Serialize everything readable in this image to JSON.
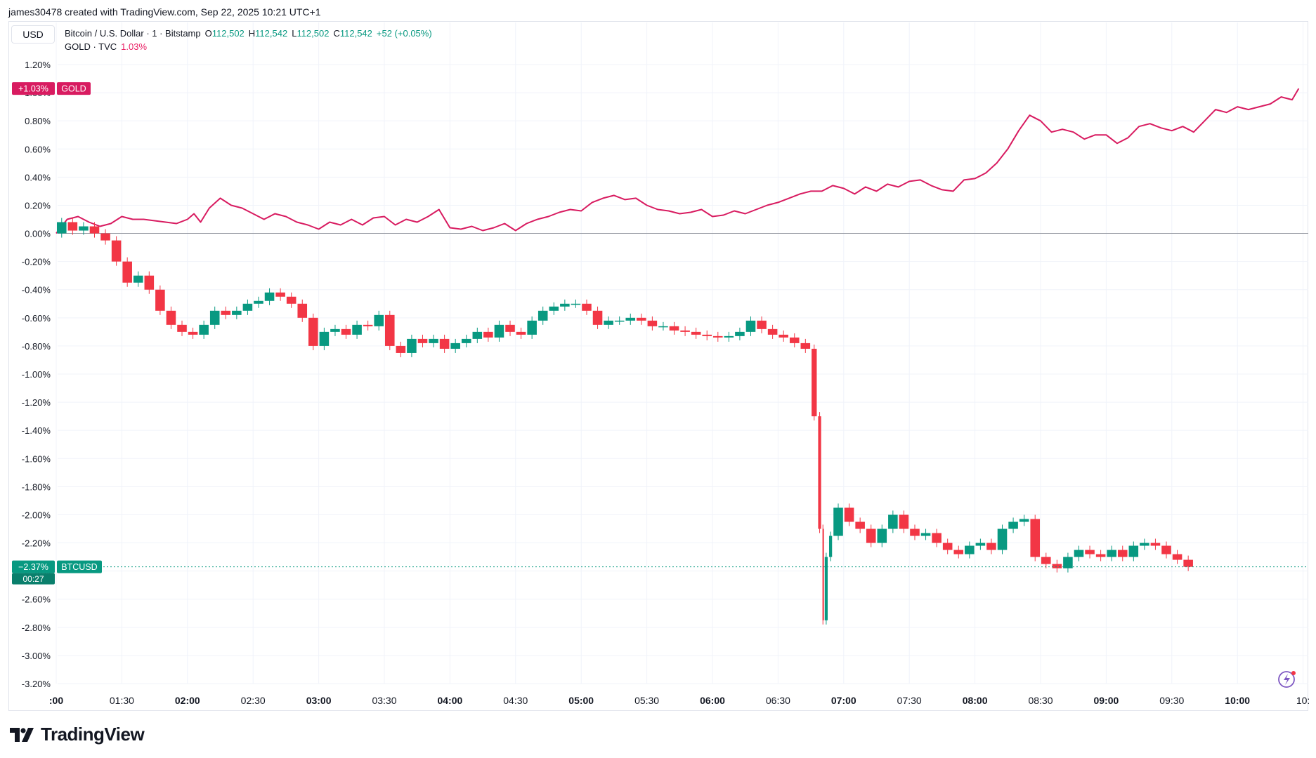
{
  "credit": "james30478 created with TradingView.com, Sep 22, 2025 10:21 UTC+1",
  "currency": "USD",
  "legend": {
    "symbol": "Bitcoin / U.S. Dollar · 1 · Bitstamp",
    "o_label": "O",
    "o_value": "112,502",
    "h_label": "H",
    "h_value": "112,542",
    "l_label": "L",
    "l_value": "112,502",
    "c_label": "C",
    "c_value": "112,542",
    "change": "+52 (+0.05%)",
    "gold_symbol": "GOLD · TVC",
    "gold_value": "1.03%"
  },
  "badges": {
    "gold_value": "+1.03%",
    "gold_name": "GOLD",
    "btc_value": "−2.37%",
    "btc_name": "BTCUSD",
    "btc_countdown": "00:27"
  },
  "brand": "TradingView",
  "colors": {
    "gold": "#d81b60",
    "up": "#089981",
    "down": "#f23645",
    "grid": "#f0f3fa",
    "text": "#131722"
  },
  "chart_data": {
    "type": "line",
    "y_scale": "percent",
    "ylim": [
      -3.2,
      1.2
    ],
    "y_ticks": [
      "1.20%",
      "1.00%",
      "0.80%",
      "0.60%",
      "0.40%",
      "0.20%",
      "0.00%",
      "-0.20%",
      "-0.40%",
      "-0.60%",
      "-0.80%",
      "-1.00%",
      "-1.20%",
      "-1.40%",
      "-1.60%",
      "-1.80%",
      "-2.00%",
      "-2.20%",
      "-2.40%",
      "-2.60%",
      "-2.80%",
      "-3.00%",
      "-3.20%"
    ],
    "x_ticks": [
      {
        "label": ":00",
        "bold": true
      },
      {
        "label": "01:30",
        "bold": false
      },
      {
        "label": "02:00",
        "bold": true
      },
      {
        "label": "02:30",
        "bold": false
      },
      {
        "label": "03:00",
        "bold": true
      },
      {
        "label": "03:30",
        "bold": false
      },
      {
        "label": "04:00",
        "bold": true
      },
      {
        "label": "04:30",
        "bold": false
      },
      {
        "label": "05:00",
        "bold": true
      },
      {
        "label": "05:30",
        "bold": false
      },
      {
        "label": "06:00",
        "bold": true
      },
      {
        "label": "06:30",
        "bold": false
      },
      {
        "label": "07:00",
        "bold": true
      },
      {
        "label": "07:30",
        "bold": false
      },
      {
        "label": "08:00",
        "bold": true
      },
      {
        "label": "08:30",
        "bold": false
      },
      {
        "label": "09:00",
        "bold": true
      },
      {
        "label": "09:30",
        "bold": false
      },
      {
        "label": "10:00",
        "bold": true
      },
      {
        "label": "10:",
        "bold": false
      }
    ],
    "x_range": [
      "01:00",
      "10:30"
    ],
    "series": [
      {
        "name": "GOLD",
        "style": "line",
        "points": [
          [
            "01:00",
            0.0
          ],
          [
            "01:05",
            0.1
          ],
          [
            "01:10",
            0.12
          ],
          [
            "01:15",
            0.08
          ],
          [
            "01:20",
            0.05
          ],
          [
            "01:25",
            0.07
          ],
          [
            "01:30",
            0.12
          ],
          [
            "01:35",
            0.1
          ],
          [
            "01:40",
            0.1
          ],
          [
            "01:45",
            0.09
          ],
          [
            "01:50",
            0.08
          ],
          [
            "01:55",
            0.07
          ],
          [
            "02:00",
            0.1
          ],
          [
            "02:03",
            0.14
          ],
          [
            "02:06",
            0.08
          ],
          [
            "02:10",
            0.18
          ],
          [
            "02:15",
            0.25
          ],
          [
            "02:20",
            0.2
          ],
          [
            "02:25",
            0.18
          ],
          [
            "02:30",
            0.14
          ],
          [
            "02:35",
            0.1
          ],
          [
            "02:40",
            0.14
          ],
          [
            "02:45",
            0.12
          ],
          [
            "02:50",
            0.08
          ],
          [
            "02:55",
            0.06
          ],
          [
            "03:00",
            0.03
          ],
          [
            "03:05",
            0.08
          ],
          [
            "03:10",
            0.06
          ],
          [
            "03:15",
            0.1
          ],
          [
            "03:20",
            0.06
          ],
          [
            "03:25",
            0.11
          ],
          [
            "03:30",
            0.12
          ],
          [
            "03:35",
            0.06
          ],
          [
            "03:40",
            0.1
          ],
          [
            "03:45",
            0.08
          ],
          [
            "03:50",
            0.12
          ],
          [
            "03:55",
            0.17
          ],
          [
            "04:00",
            0.04
          ],
          [
            "04:05",
            0.03
          ],
          [
            "04:10",
            0.05
          ],
          [
            "04:15",
            0.02
          ],
          [
            "04:20",
            0.04
          ],
          [
            "04:25",
            0.07
          ],
          [
            "04:30",
            0.02
          ],
          [
            "04:35",
            0.07
          ],
          [
            "04:40",
            0.1
          ],
          [
            "04:45",
            0.12
          ],
          [
            "04:50",
            0.15
          ],
          [
            "04:55",
            0.17
          ],
          [
            "05:00",
            0.16
          ],
          [
            "05:05",
            0.22
          ],
          [
            "05:10",
            0.25
          ],
          [
            "05:15",
            0.27
          ],
          [
            "05:20",
            0.24
          ],
          [
            "05:25",
            0.25
          ],
          [
            "05:30",
            0.2
          ],
          [
            "05:35",
            0.17
          ],
          [
            "05:40",
            0.16
          ],
          [
            "05:45",
            0.14
          ],
          [
            "05:50",
            0.15
          ],
          [
            "05:55",
            0.17
          ],
          [
            "06:00",
            0.12
          ],
          [
            "06:05",
            0.13
          ],
          [
            "06:10",
            0.16
          ],
          [
            "06:15",
            0.14
          ],
          [
            "06:20",
            0.17
          ],
          [
            "06:25",
            0.2
          ],
          [
            "06:30",
            0.22
          ],
          [
            "06:35",
            0.25
          ],
          [
            "06:40",
            0.28
          ],
          [
            "06:45",
            0.3
          ],
          [
            "06:50",
            0.3
          ],
          [
            "06:55",
            0.34
          ],
          [
            "07:00",
            0.32
          ],
          [
            "07:05",
            0.28
          ],
          [
            "07:10",
            0.33
          ],
          [
            "07:15",
            0.3
          ],
          [
            "07:20",
            0.35
          ],
          [
            "07:25",
            0.33
          ],
          [
            "07:30",
            0.37
          ],
          [
            "07:35",
            0.38
          ],
          [
            "07:40",
            0.34
          ],
          [
            "07:45",
            0.31
          ],
          [
            "07:50",
            0.3
          ],
          [
            "07:55",
            0.38
          ],
          [
            "08:00",
            0.39
          ],
          [
            "08:05",
            0.43
          ],
          [
            "08:10",
            0.5
          ],
          [
            "08:15",
            0.6
          ],
          [
            "08:20",
            0.73
          ],
          [
            "08:25",
            0.84
          ],
          [
            "08:30",
            0.8
          ],
          [
            "08:35",
            0.72
          ],
          [
            "08:40",
            0.74
          ],
          [
            "08:45",
            0.72
          ],
          [
            "08:50",
            0.67
          ],
          [
            "08:55",
            0.7
          ],
          [
            "09:00",
            0.7
          ],
          [
            "09:05",
            0.64
          ],
          [
            "09:10",
            0.68
          ],
          [
            "09:15",
            0.76
          ],
          [
            "09:20",
            0.78
          ],
          [
            "09:25",
            0.75
          ],
          [
            "09:30",
            0.73
          ],
          [
            "09:35",
            0.76
          ],
          [
            "09:40",
            0.72
          ],
          [
            "09:45",
            0.8
          ],
          [
            "09:50",
            0.88
          ],
          [
            "09:55",
            0.86
          ],
          [
            "10:00",
            0.9
          ],
          [
            "10:05",
            0.88
          ],
          [
            "10:10",
            0.9
          ],
          [
            "10:15",
            0.92
          ],
          [
            "10:20",
            0.97
          ],
          [
            "10:25",
            0.95
          ],
          [
            "10:28",
            1.03
          ]
        ]
      },
      {
        "name": "BTCUSD",
        "style": "candles",
        "points": [
          [
            "01:00",
            0.0
          ],
          [
            "01:05",
            0.08
          ],
          [
            "01:10",
            0.02
          ],
          [
            "01:15",
            0.05
          ],
          [
            "01:20",
            0.0
          ],
          [
            "01:25",
            -0.05
          ],
          [
            "01:30",
            -0.2
          ],
          [
            "01:35",
            -0.35
          ],
          [
            "01:40",
            -0.3
          ],
          [
            "01:45",
            -0.4
          ],
          [
            "01:50",
            -0.55
          ],
          [
            "01:55",
            -0.65
          ],
          [
            "02:00",
            -0.7
          ],
          [
            "02:05",
            -0.72
          ],
          [
            "02:10",
            -0.65
          ],
          [
            "02:15",
            -0.55
          ],
          [
            "02:20",
            -0.58
          ],
          [
            "02:25",
            -0.55
          ],
          [
            "02:30",
            -0.5
          ],
          [
            "02:35",
            -0.48
          ],
          [
            "02:40",
            -0.42
          ],
          [
            "02:45",
            -0.45
          ],
          [
            "02:50",
            -0.5
          ],
          [
            "02:55",
            -0.6
          ],
          [
            "03:00",
            -0.8
          ],
          [
            "03:05",
            -0.7
          ],
          [
            "03:10",
            -0.68
          ],
          [
            "03:15",
            -0.72
          ],
          [
            "03:20",
            -0.65
          ],
          [
            "03:25",
            -0.66
          ],
          [
            "03:30",
            -0.58
          ],
          [
            "03:35",
            -0.8
          ],
          [
            "03:40",
            -0.85
          ],
          [
            "03:45",
            -0.75
          ],
          [
            "03:50",
            -0.78
          ],
          [
            "03:55",
            -0.75
          ],
          [
            "04:00",
            -0.82
          ],
          [
            "04:05",
            -0.78
          ],
          [
            "04:10",
            -0.75
          ],
          [
            "04:15",
            -0.7
          ],
          [
            "04:20",
            -0.74
          ],
          [
            "04:25",
            -0.65
          ],
          [
            "04:30",
            -0.7
          ],
          [
            "04:35",
            -0.72
          ],
          [
            "04:40",
            -0.62
          ],
          [
            "04:45",
            -0.55
          ],
          [
            "04:50",
            -0.52
          ],
          [
            "04:55",
            -0.5
          ],
          [
            "05:00",
            -0.5
          ],
          [
            "05:05",
            -0.55
          ],
          [
            "05:10",
            -0.65
          ],
          [
            "05:15",
            -0.62
          ],
          [
            "05:20",
            -0.62
          ],
          [
            "05:25",
            -0.6
          ],
          [
            "05:30",
            -0.62
          ],
          [
            "05:35",
            -0.66
          ],
          [
            "05:40",
            -0.66
          ],
          [
            "05:45",
            -0.69
          ],
          [
            "05:50",
            -0.7
          ],
          [
            "05:55",
            -0.72
          ],
          [
            "06:00",
            -0.73
          ],
          [
            "06:05",
            -0.74
          ],
          [
            "06:10",
            -0.73
          ],
          [
            "06:15",
            -0.7
          ],
          [
            "06:20",
            -0.62
          ],
          [
            "06:25",
            -0.68
          ],
          [
            "06:30",
            -0.72
          ],
          [
            "06:35",
            -0.74
          ],
          [
            "06:40",
            -0.78
          ],
          [
            "06:45",
            -0.82
          ],
          [
            "06:48",
            -1.3
          ],
          [
            "06:50",
            -2.1
          ],
          [
            "06:51",
            -2.75
          ],
          [
            "06:53",
            -2.3
          ],
          [
            "06:55",
            -2.15
          ],
          [
            "07:00",
            -1.95
          ],
          [
            "07:05",
            -2.05
          ],
          [
            "07:10",
            -2.1
          ],
          [
            "07:15",
            -2.2
          ],
          [
            "07:20",
            -2.1
          ],
          [
            "07:25",
            -2.0
          ],
          [
            "07:30",
            -2.1
          ],
          [
            "07:35",
            -2.15
          ],
          [
            "07:40",
            -2.13
          ],
          [
            "07:45",
            -2.2
          ],
          [
            "07:50",
            -2.25
          ],
          [
            "07:55",
            -2.28
          ],
          [
            "08:00",
            -2.22
          ],
          [
            "08:05",
            -2.2
          ],
          [
            "08:10",
            -2.25
          ],
          [
            "08:15",
            -2.1
          ],
          [
            "08:20",
            -2.05
          ],
          [
            "08:25",
            -2.03
          ],
          [
            "08:30",
            -2.3
          ],
          [
            "08:35",
            -2.35
          ],
          [
            "08:40",
            -2.38
          ],
          [
            "08:45",
            -2.3
          ],
          [
            "08:50",
            -2.25
          ],
          [
            "08:55",
            -2.28
          ],
          [
            "09:00",
            -2.3
          ],
          [
            "09:05",
            -2.25
          ],
          [
            "09:10",
            -2.3
          ],
          [
            "09:15",
            -2.22
          ],
          [
            "09:20",
            -2.2
          ],
          [
            "09:25",
            -2.22
          ],
          [
            "09:30",
            -2.28
          ],
          [
            "09:35",
            -2.32
          ],
          [
            "09:40",
            -2.37
          ]
        ]
      }
    ]
  }
}
